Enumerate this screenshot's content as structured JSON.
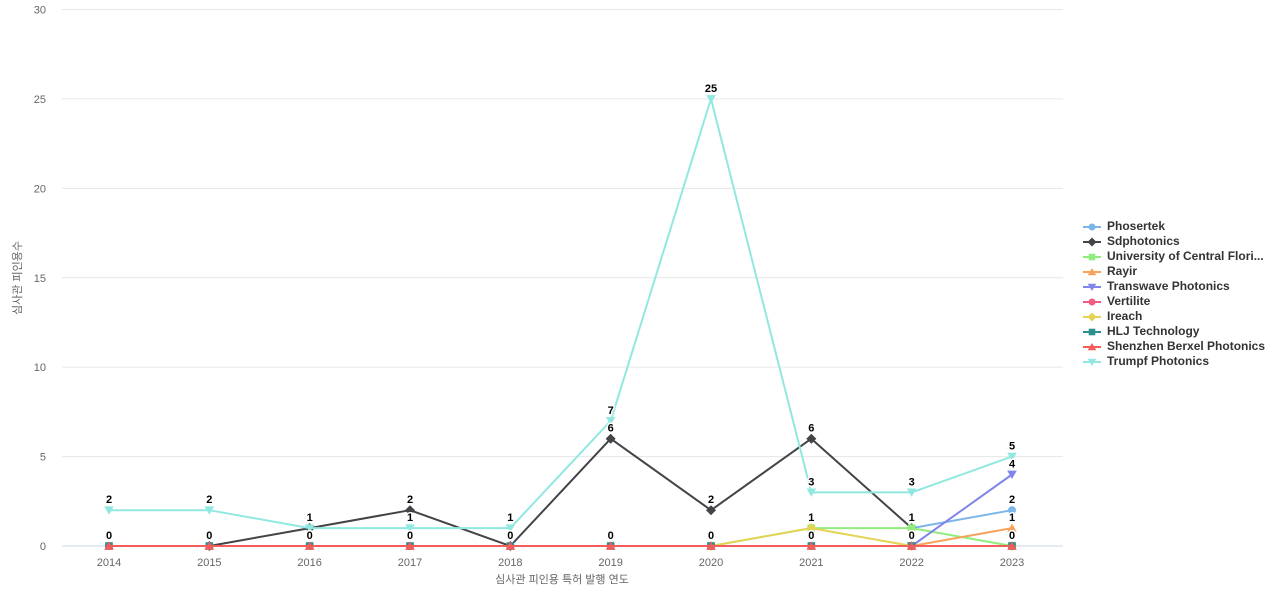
{
  "chart_data": {
    "type": "line",
    "title": "",
    "xlabel": "심사관 피인용 특허 발행 연도",
    "ylabel": "심사관 피인용수",
    "categories": [
      "2014",
      "2015",
      "2016",
      "2017",
      "2018",
      "2019",
      "2020",
      "2021",
      "2022",
      "2023"
    ],
    "yticks": [
      0,
      5,
      10,
      15,
      20,
      25,
      30
    ],
    "ylim": [
      0,
      30
    ],
    "grid": true,
    "legend_position": "right",
    "data_labels": true,
    "series": [
      {
        "name": "Phosertek",
        "color": "#7cb5ec",
        "marker": "circle",
        "values": [
          null,
          null,
          null,
          null,
          null,
          null,
          null,
          null,
          1,
          2
        ]
      },
      {
        "name": "Sdphotonics",
        "color": "#434348",
        "marker": "diamond",
        "values": [
          null,
          0,
          1,
          2,
          0,
          6,
          2,
          6,
          1,
          null
        ]
      },
      {
        "name": "University of Central Flori...",
        "color": "#90ed7d",
        "marker": "square",
        "values": [
          null,
          null,
          null,
          null,
          null,
          null,
          0,
          1,
          1,
          0
        ]
      },
      {
        "name": "Rayir",
        "color": "#f7a35c",
        "marker": "triangle",
        "values": [
          null,
          null,
          null,
          null,
          null,
          null,
          null,
          null,
          0,
          1
        ]
      },
      {
        "name": "Transwave Photonics",
        "color": "#8085e9",
        "marker": "triangle-down",
        "values": [
          null,
          null,
          null,
          null,
          null,
          null,
          null,
          null,
          0,
          4
        ]
      },
      {
        "name": "Vertilite",
        "color": "#f15c80",
        "marker": "circle",
        "values": [
          0,
          0,
          0,
          0,
          0,
          0,
          0,
          0,
          0,
          0
        ]
      },
      {
        "name": "Ireach",
        "color": "#e4d354",
        "marker": "diamond",
        "values": [
          null,
          null,
          null,
          null,
          null,
          null,
          0,
          1,
          0,
          0
        ]
      },
      {
        "name": "HLJ Technology",
        "color": "#2b908f",
        "marker": "square",
        "values": [
          0,
          0,
          0,
          0,
          0,
          0,
          0,
          0,
          0,
          0
        ]
      },
      {
        "name": "Shenzhen Berxel Photonics",
        "color": "#f45b5b",
        "marker": "triangle",
        "values": [
          0,
          0,
          0,
          0,
          0,
          0,
          0,
          0,
          0,
          0
        ]
      },
      {
        "name": "Trumpf Photonics",
        "color": "#91e8e1",
        "marker": "triangle-down",
        "values": [
          2,
          2,
          1,
          1,
          1,
          7,
          25,
          3,
          3,
          5
        ]
      }
    ]
  },
  "colors": {
    "background": "#ffffff",
    "gridline": "#e6e6e6",
    "axis_line": "#ccd6eb",
    "tick_text": "#666666",
    "axis_title_text": "#666666",
    "legend_text": "#333333",
    "data_label_text": "#000000"
  }
}
